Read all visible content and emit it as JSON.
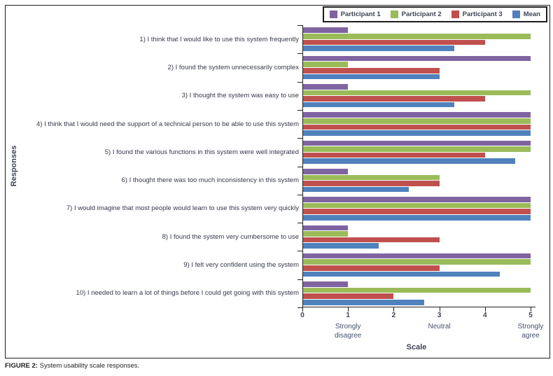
{
  "figure": {
    "caption_prefix": "FIGURE 2:",
    "caption_text": " System usability scale responses."
  },
  "chart_data": {
    "type": "bar",
    "orientation": "horizontal",
    "xlabel": "Scale",
    "ylabel": "Responses",
    "xlim": [
      0,
      5
    ],
    "xticks": [
      0,
      1,
      2,
      3,
      4,
      5
    ],
    "grid": false,
    "legend_position": "top-right",
    "scale_annotations": [
      {
        "value": 1,
        "label": "Strongly disagree"
      },
      {
        "value": 3,
        "label": "Neutral"
      },
      {
        "value": 5,
        "label": "Strongly agree"
      }
    ],
    "categories": [
      "1) I think that I would like to use this system frequently",
      "2) I found the system unnecessarily complex",
      "3) I thought the system was easy to use",
      "4) I think that I would need the support of a technical person to be able to use this system",
      "5) I found the various functions in this system were well integrated",
      "6) I thought there was too much inconsistency in this system",
      "7) I would imagine that most people would learn to use this system very quickly",
      "8) I found the system very cumbersome to use",
      "9) I felt very confident using the system",
      "10) I needed to learn a lot of things before I could get going with this system"
    ],
    "series": [
      {
        "name": "Participant 1",
        "color": "#8064A2",
        "values": [
          1,
          5,
          1,
          5,
          5,
          1,
          5,
          1,
          5,
          1
        ]
      },
      {
        "name": "Participant 2",
        "color": "#9BBB59",
        "values": [
          5,
          1,
          5,
          5,
          5,
          3,
          5,
          1,
          5,
          5
        ]
      },
      {
        "name": "Participant 3",
        "color": "#C0504D",
        "values": [
          4,
          3,
          4,
          5,
          4,
          3,
          5,
          3,
          3,
          2
        ]
      },
      {
        "name": "Mean",
        "color": "#4F81BD",
        "values": [
          3.33,
          3,
          3.33,
          5,
          4.67,
          2.33,
          5,
          1.67,
          4.33,
          2.67
        ]
      }
    ],
    "colors": {
      "axis": "#231f20",
      "text": "#3f4454"
    }
  }
}
